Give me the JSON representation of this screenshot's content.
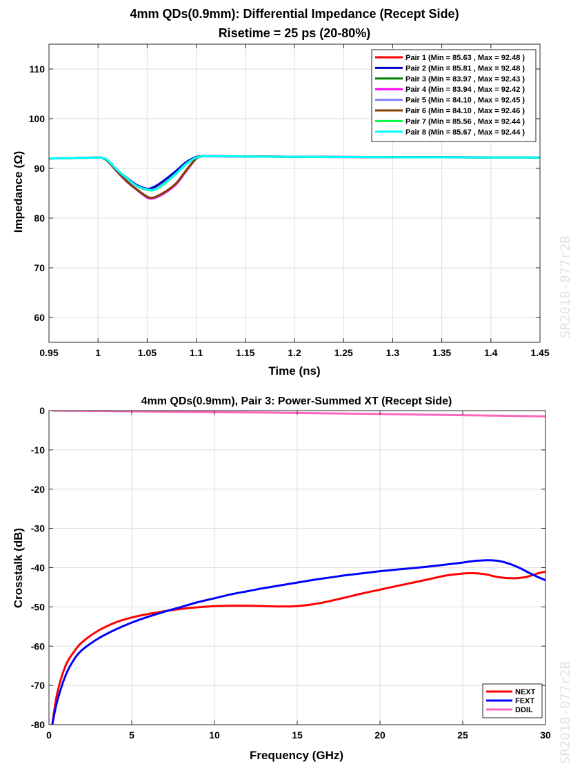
{
  "watermarks": [
    "SR2018-077r2B",
    "SR2018-077r2B"
  ],
  "chart_data": [
    {
      "type": "line",
      "title": "4mm QDs(0.9mm): Differential Impedance (Recept Side)",
      "subtitle": "Risetime = 25 ps (20-80%)",
      "xlabel": "Time (ns)",
      "ylabel": "Impedance (Ω)",
      "xlim": [
        0.95,
        1.45
      ],
      "ylim": [
        55,
        115
      ],
      "xticks": [
        0.95,
        1,
        1.05,
        1.1,
        1.15,
        1.2,
        1.25,
        1.3,
        1.35,
        1.4,
        1.45
      ],
      "xtick_labels": [
        "0.95",
        "1",
        "1.05",
        "1.1",
        "1.15",
        "1.2",
        "1.25",
        "1.3",
        "1.35",
        "1.4",
        "1.45"
      ],
      "yticks": [
        60,
        70,
        80,
        90,
        100,
        110
      ],
      "ytick_labels": [
        "60",
        "70",
        "80",
        "90",
        "100",
        "110"
      ],
      "grid": true,
      "legend_position": "top-right",
      "x": [
        0.95,
        0.98,
        1.0,
        1.005,
        1.01,
        1.02,
        1.03,
        1.04,
        1.05,
        1.055,
        1.06,
        1.07,
        1.08,
        1.09,
        1.1,
        1.105,
        1.11,
        1.15,
        1.2,
        1.25,
        1.3,
        1.35,
        1.4,
        1.45
      ],
      "series": [
        {
          "name": "Pair 1 (Min = 85.63 , Max = 92.48 )",
          "color": "#ff0000",
          "values": [
            92.0,
            92.1,
            92.2,
            92.1,
            91.6,
            89.6,
            87.9,
            86.4,
            85.7,
            85.9,
            86.4,
            87.8,
            89.4,
            91.1,
            92.3,
            92.45,
            92.48,
            92.42,
            92.35,
            92.3,
            92.28,
            92.25,
            92.22,
            92.2
          ]
        },
        {
          "name": "Pair 2 (Min = 85.81 , Max = 92.48 )",
          "color": "#0000cd",
          "values": [
            92.0,
            92.1,
            92.2,
            92.1,
            91.6,
            89.6,
            88.0,
            86.6,
            85.9,
            86.1,
            86.6,
            88.0,
            89.6,
            91.3,
            92.3,
            92.45,
            92.48,
            92.42,
            92.35,
            92.3,
            92.28,
            92.25,
            92.22,
            92.2
          ]
        },
        {
          "name": "Pair 3 (Min = 83.97 , Max = 92.43 )",
          "color": "#008000",
          "values": [
            92.0,
            92.1,
            92.2,
            92.05,
            91.4,
            89.2,
            87.2,
            85.6,
            84.2,
            84.0,
            84.3,
            85.4,
            87.0,
            89.6,
            92.0,
            92.35,
            92.43,
            92.38,
            92.32,
            92.28,
            92.25,
            92.22,
            92.2,
            92.18
          ]
        },
        {
          "name": "Pair 4 (Min = 83.94 , Max = 92.42 )",
          "color": "#ff00ff",
          "values": [
            92.0,
            92.1,
            92.2,
            92.05,
            91.4,
            89.2,
            87.2,
            85.6,
            84.1,
            83.94,
            84.2,
            85.3,
            86.9,
            89.5,
            92.0,
            92.35,
            92.42,
            92.38,
            92.32,
            92.28,
            92.25,
            92.22,
            92.2,
            92.18
          ]
        },
        {
          "name": "Pair 5 (Min = 84.10 , Max = 92.45 )",
          "color": "#8080ff",
          "values": [
            92.0,
            92.1,
            92.2,
            92.05,
            91.4,
            89.3,
            87.3,
            85.7,
            84.3,
            84.1,
            84.4,
            85.5,
            87.1,
            89.7,
            92.0,
            92.38,
            92.45,
            92.4,
            92.33,
            92.29,
            92.26,
            92.23,
            92.2,
            92.18
          ]
        },
        {
          "name": "Pair 6 (Min = 84.10 , Max = 92.46 )",
          "color": "#804000",
          "values": [
            92.0,
            92.1,
            92.2,
            92.05,
            91.4,
            89.3,
            87.3,
            85.7,
            84.3,
            84.1,
            84.4,
            85.5,
            87.1,
            89.7,
            92.0,
            92.38,
            92.46,
            92.4,
            92.33,
            92.29,
            92.26,
            92.23,
            92.2,
            92.18
          ]
        },
        {
          "name": "Pair 7 (Min = 85.56 , Max = 92.44 )",
          "color": "#00ff40",
          "values": [
            92.0,
            92.1,
            92.2,
            92.1,
            91.6,
            89.6,
            87.9,
            86.4,
            85.7,
            85.56,
            85.9,
            87.3,
            89.0,
            90.9,
            92.2,
            92.4,
            92.44,
            92.4,
            92.33,
            92.29,
            92.26,
            92.23,
            92.2,
            92.18
          ]
        },
        {
          "name": "Pair 8 (Min = 85.67 , Max = 92.44 )",
          "color": "#00ffff",
          "values": [
            92.0,
            92.1,
            92.2,
            92.1,
            91.6,
            89.6,
            87.9,
            86.4,
            85.75,
            85.67,
            86.0,
            87.4,
            89.1,
            91.0,
            92.2,
            92.4,
            92.44,
            92.4,
            92.33,
            92.29,
            92.26,
            92.23,
            92.2,
            92.18
          ]
        }
      ]
    },
    {
      "type": "line",
      "title": "4mm QDs(0.9mm), Pair 3: Power-Summed XT (Recept Side)",
      "xlabel": "Frequency (GHz)",
      "ylabel": "Crosstalk (dB)",
      "xlim": [
        0,
        30
      ],
      "ylim": [
        -80,
        0
      ],
      "xticks": [
        0,
        5,
        10,
        15,
        20,
        25,
        30
      ],
      "xtick_labels": [
        "0",
        "5",
        "10",
        "15",
        "20",
        "25",
        "30"
      ],
      "yticks": [
        0,
        -10,
        -20,
        -30,
        -40,
        -50,
        -60,
        -70,
        -80
      ],
      "ytick_labels": [
        "0",
        "-10",
        "-20",
        "-30",
        "-40",
        "-50",
        "-60",
        "-70",
        "-80"
      ],
      "grid": true,
      "legend_position": "bottom-right",
      "x": [
        0.2,
        0.5,
        1,
        1.5,
        2,
        3,
        4,
        5,
        6,
        7,
        8,
        9,
        10,
        11,
        12,
        13,
        14,
        15,
        16,
        17,
        18,
        19,
        20,
        21,
        22,
        23,
        24,
        25,
        25.5,
        26,
        26.5,
        27,
        27.5,
        28,
        28.5,
        29,
        29.5,
        30
      ],
      "series": [
        {
          "name": "NEXT",
          "color": "#ff0000",
          "values": [
            -80,
            -72,
            -65,
            -61.5,
            -59,
            -56,
            -54,
            -52.7,
            -51.8,
            -51.1,
            -50.5,
            -50.1,
            -49.8,
            -49.7,
            -49.7,
            -49.8,
            -49.9,
            -49.8,
            -49.3,
            -48.5,
            -47.5,
            -46.5,
            -45.6,
            -44.7,
            -43.8,
            -42.9,
            -42.0,
            -41.5,
            -41.4,
            -41.5,
            -41.8,
            -42.3,
            -42.6,
            -42.7,
            -42.6,
            -42.2,
            -41.5,
            -41.0
          ]
        },
        {
          "name": "FEXT",
          "color": "#0000ff",
          "values": [
            -80,
            -74,
            -67.5,
            -63.5,
            -61,
            -58,
            -55.8,
            -54,
            -52.5,
            -51.2,
            -50,
            -48.8,
            -47.8,
            -46.8,
            -46,
            -45.2,
            -44.5,
            -43.8,
            -43.1,
            -42.5,
            -41.9,
            -41.4,
            -40.9,
            -40.5,
            -40.1,
            -39.7,
            -39.2,
            -38.7,
            -38.4,
            -38.2,
            -38.1,
            -38.2,
            -38.6,
            -39.3,
            -40.2,
            -41.3,
            -42.3,
            -43.2
          ]
        },
        {
          "name": "DDIL",
          "color": "#ff66bb",
          "values": [
            0,
            0,
            -0.02,
            -0.04,
            -0.06,
            -0.1,
            -0.14,
            -0.18,
            -0.22,
            -0.26,
            -0.3,
            -0.34,
            -0.38,
            -0.42,
            -0.46,
            -0.5,
            -0.55,
            -0.6,
            -0.65,
            -0.7,
            -0.75,
            -0.8,
            -0.86,
            -0.92,
            -0.98,
            -1.04,
            -1.1,
            -1.16,
            -1.19,
            -1.22,
            -1.25,
            -1.28,
            -1.31,
            -1.34,
            -1.37,
            -1.4,
            -1.43,
            -1.46
          ]
        }
      ]
    }
  ]
}
